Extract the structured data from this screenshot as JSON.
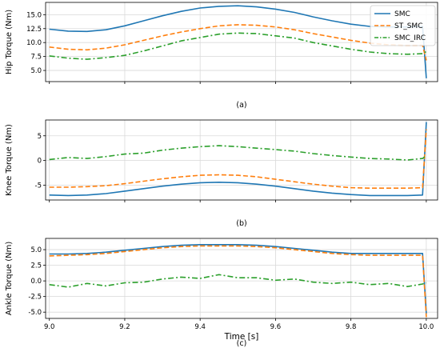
{
  "chart_data": [
    {
      "type": "line",
      "caption": "(a)",
      "ylabel": "Hip Torque (Nm)",
      "xlim": [
        8.99,
        10.03
      ],
      "ylim": [
        3.0,
        17.2
      ],
      "yticks": [
        "5.0",
        "7.5",
        "10.0",
        "12.5",
        "15.0"
      ],
      "ytick_values": [
        5.0,
        7.5,
        10.0,
        12.5,
        15.0
      ],
      "grid": true,
      "legend": {
        "placement": "top-right",
        "entries": [
          "SMC",
          "ST_SMC",
          "SMC_IRC"
        ]
      },
      "series": [
        {
          "name": "SMC",
          "color": "#1f77b4",
          "dash": "solid",
          "points": [
            [
              9.0,
              12.4
            ],
            [
              9.05,
              12.05
            ],
            [
              9.1,
              12.0
            ],
            [
              9.15,
              12.3
            ],
            [
              9.2,
              13.0
            ],
            [
              9.25,
              13.9
            ],
            [
              9.3,
              14.8
            ],
            [
              9.35,
              15.6
            ],
            [
              9.4,
              16.2
            ],
            [
              9.45,
              16.5
            ],
            [
              9.5,
              16.6
            ],
            [
              9.55,
              16.4
            ],
            [
              9.6,
              16.0
            ],
            [
              9.65,
              15.4
            ],
            [
              9.7,
              14.6
            ],
            [
              9.75,
              13.9
            ],
            [
              9.8,
              13.3
            ],
            [
              9.85,
              12.9
            ],
            [
              9.9,
              12.8
            ],
            [
              9.95,
              12.8
            ],
            [
              9.99,
              12.9
            ],
            [
              10.0,
              3.6
            ]
          ]
        },
        {
          "name": "ST_SMC",
          "color": "#ff7f0e",
          "dash": "dashed",
          "points": [
            [
              9.0,
              9.2
            ],
            [
              9.05,
              8.8
            ],
            [
              9.1,
              8.7
            ],
            [
              9.15,
              9.0
            ],
            [
              9.2,
              9.6
            ],
            [
              9.25,
              10.4
            ],
            [
              9.3,
              11.2
            ],
            [
              9.35,
              11.9
            ],
            [
              9.4,
              12.5
            ],
            [
              9.45,
              13.0
            ],
            [
              9.5,
              13.2
            ],
            [
              9.55,
              13.1
            ],
            [
              9.6,
              12.8
            ],
            [
              9.65,
              12.3
            ],
            [
              9.7,
              11.6
            ],
            [
              9.75,
              11.0
            ],
            [
              9.8,
              10.4
            ],
            [
              9.85,
              9.9
            ],
            [
              9.9,
              9.6
            ],
            [
              9.95,
              9.5
            ],
            [
              9.99,
              9.5
            ],
            [
              10.0,
              6.8
            ]
          ]
        },
        {
          "name": "SMC_IRC",
          "color": "#2ca02c",
          "dash": "dashdot",
          "points": [
            [
              9.0,
              7.6
            ],
            [
              9.05,
              7.2
            ],
            [
              9.1,
              7.0
            ],
            [
              9.15,
              7.3
            ],
            [
              9.2,
              7.7
            ],
            [
              9.25,
              8.5
            ],
            [
              9.3,
              9.4
            ],
            [
              9.35,
              10.3
            ],
            [
              9.4,
              10.9
            ],
            [
              9.45,
              11.5
            ],
            [
              9.5,
              11.7
            ],
            [
              9.55,
              11.6
            ],
            [
              9.6,
              11.2
            ],
            [
              9.65,
              10.8
            ],
            [
              9.7,
              10.0
            ],
            [
              9.75,
              9.4
            ],
            [
              9.8,
              8.8
            ],
            [
              9.85,
              8.3
            ],
            [
              9.9,
              8.0
            ],
            [
              9.95,
              7.9
            ],
            [
              9.99,
              8.0
            ],
            [
              10.0,
              8.4
            ]
          ]
        }
      ]
    },
    {
      "type": "line",
      "caption": "(b)",
      "ylabel": "Knee Torque (Nm)",
      "xlim": [
        8.99,
        10.03
      ],
      "ylim": [
        -8.0,
        8.2
      ],
      "yticks": [
        "-5",
        "0",
        "5"
      ],
      "ytick_values": [
        -5,
        0,
        5
      ],
      "grid": true,
      "series": [
        {
          "name": "SMC",
          "color": "#1f77b4",
          "dash": "solid",
          "points": [
            [
              9.0,
              -7.0
            ],
            [
              9.05,
              -7.1
            ],
            [
              9.1,
              -7.0
            ],
            [
              9.15,
              -6.7
            ],
            [
              9.2,
              -6.2
            ],
            [
              9.25,
              -5.7
            ],
            [
              9.3,
              -5.2
            ],
            [
              9.35,
              -4.8
            ],
            [
              9.4,
              -4.5
            ],
            [
              9.45,
              -4.4
            ],
            [
              9.5,
              -4.5
            ],
            [
              9.55,
              -4.8
            ],
            [
              9.6,
              -5.2
            ],
            [
              9.65,
              -5.7
            ],
            [
              9.7,
              -6.2
            ],
            [
              9.75,
              -6.6
            ],
            [
              9.8,
              -6.9
            ],
            [
              9.85,
              -7.1
            ],
            [
              9.9,
              -7.1
            ],
            [
              9.95,
              -7.1
            ],
            [
              9.99,
              -7.0
            ],
            [
              10.0,
              7.8
            ]
          ]
        },
        {
          "name": "ST_SMC",
          "color": "#ff7f0e",
          "dash": "dashed",
          "points": [
            [
              9.0,
              -5.4
            ],
            [
              9.05,
              -5.4
            ],
            [
              9.1,
              -5.3
            ],
            [
              9.15,
              -5.1
            ],
            [
              9.2,
              -4.7
            ],
            [
              9.25,
              -4.2
            ],
            [
              9.3,
              -3.7
            ],
            [
              9.35,
              -3.3
            ],
            [
              9.4,
              -3.0
            ],
            [
              9.45,
              -2.9
            ],
            [
              9.5,
              -3.0
            ],
            [
              9.55,
              -3.3
            ],
            [
              9.6,
              -3.8
            ],
            [
              9.65,
              -4.3
            ],
            [
              9.7,
              -4.8
            ],
            [
              9.75,
              -5.2
            ],
            [
              9.8,
              -5.5
            ],
            [
              9.85,
              -5.6
            ],
            [
              9.9,
              -5.6
            ],
            [
              9.95,
              -5.6
            ],
            [
              9.99,
              -5.5
            ],
            [
              10.0,
              6.3
            ]
          ]
        },
        {
          "name": "SMC_IRC",
          "color": "#2ca02c",
          "dash": "dashdot",
          "points": [
            [
              9.0,
              0.2
            ],
            [
              9.05,
              0.6
            ],
            [
              9.1,
              0.4
            ],
            [
              9.15,
              0.8
            ],
            [
              9.2,
              1.3
            ],
            [
              9.25,
              1.5
            ],
            [
              9.3,
              2.1
            ],
            [
              9.35,
              2.5
            ],
            [
              9.4,
              2.8
            ],
            [
              9.45,
              3.0
            ],
            [
              9.5,
              2.8
            ],
            [
              9.55,
              2.5
            ],
            [
              9.6,
              2.2
            ],
            [
              9.65,
              1.9
            ],
            [
              9.7,
              1.4
            ],
            [
              9.75,
              1.0
            ],
            [
              9.8,
              0.7
            ],
            [
              9.85,
              0.4
            ],
            [
              9.9,
              0.3
            ],
            [
              9.95,
              0.1
            ],
            [
              9.99,
              0.4
            ],
            [
              10.0,
              1.0
            ]
          ]
        }
      ]
    },
    {
      "type": "line",
      "caption": "(c)",
      "ylabel": "Ankle Torque (Nm)",
      "xlabel": "Time [s]",
      "xlim": [
        8.99,
        10.03
      ],
      "ylim": [
        -6.0,
        6.8
      ],
      "xticks": [
        "9.0",
        "9.2",
        "9.4",
        "9.6",
        "9.8",
        "10.0"
      ],
      "xtick_values": [
        9.0,
        9.2,
        9.4,
        9.6,
        9.8,
        10.0
      ],
      "yticks": [
        "-5.0",
        "-2.5",
        "0.0",
        "2.5",
        "5.0"
      ],
      "ytick_values": [
        -5.0,
        -2.5,
        0.0,
        2.5,
        5.0
      ],
      "grid": true,
      "series": [
        {
          "name": "SMC",
          "color": "#1f77b4",
          "dash": "solid",
          "points": [
            [
              9.0,
              4.3
            ],
            [
              9.05,
              4.3
            ],
            [
              9.1,
              4.4
            ],
            [
              9.15,
              4.6
            ],
            [
              9.2,
              4.9
            ],
            [
              9.25,
              5.2
            ],
            [
              9.3,
              5.5
            ],
            [
              9.35,
              5.7
            ],
            [
              9.4,
              5.8
            ],
            [
              9.45,
              5.8
            ],
            [
              9.5,
              5.8
            ],
            [
              9.55,
              5.7
            ],
            [
              9.6,
              5.5
            ],
            [
              9.65,
              5.2
            ],
            [
              9.7,
              4.9
            ],
            [
              9.75,
              4.6
            ],
            [
              9.8,
              4.4
            ],
            [
              9.85,
              4.4
            ],
            [
              9.9,
              4.4
            ],
            [
              9.95,
              4.4
            ],
            [
              9.99,
              4.4
            ],
            [
              10.0,
              -5.2
            ]
          ]
        },
        {
          "name": "ST_SMC",
          "color": "#ff7f0e",
          "dash": "dashed",
          "points": [
            [
              9.0,
              4.0
            ],
            [
              9.05,
              4.1
            ],
            [
              9.1,
              4.2
            ],
            [
              9.15,
              4.4
            ],
            [
              9.2,
              4.7
            ],
            [
              9.25,
              5.0
            ],
            [
              9.3,
              5.3
            ],
            [
              9.35,
              5.5
            ],
            [
              9.4,
              5.6
            ],
            [
              9.45,
              5.6
            ],
            [
              9.5,
              5.6
            ],
            [
              9.55,
              5.5
            ],
            [
              9.6,
              5.3
            ],
            [
              9.65,
              5.0
            ],
            [
              9.7,
              4.7
            ],
            [
              9.75,
              4.4
            ],
            [
              9.8,
              4.2
            ],
            [
              9.85,
              4.1
            ],
            [
              9.9,
              4.1
            ],
            [
              9.95,
              4.1
            ],
            [
              9.99,
              4.1
            ],
            [
              10.0,
              -5.8
            ]
          ]
        },
        {
          "name": "SMC_IRC",
          "color": "#2ca02c",
          "dash": "dashdot",
          "points": [
            [
              9.0,
              -0.6
            ],
            [
              9.05,
              -1.0
            ],
            [
              9.1,
              -0.4
            ],
            [
              9.15,
              -0.8
            ],
            [
              9.2,
              -0.3
            ],
            [
              9.25,
              -0.2
            ],
            [
              9.3,
              0.3
            ],
            [
              9.35,
              0.6
            ],
            [
              9.4,
              0.4
            ],
            [
              9.45,
              1.0
            ],
            [
              9.5,
              0.5
            ],
            [
              9.55,
              0.5
            ],
            [
              9.6,
              0.1
            ],
            [
              9.65,
              0.3
            ],
            [
              9.7,
              -0.2
            ],
            [
              9.75,
              -0.4
            ],
            [
              9.8,
              -0.2
            ],
            [
              9.85,
              -0.6
            ],
            [
              9.9,
              -0.4
            ],
            [
              9.95,
              -0.9
            ],
            [
              9.99,
              -0.5
            ],
            [
              10.0,
              -0.3
            ]
          ]
        }
      ]
    }
  ]
}
